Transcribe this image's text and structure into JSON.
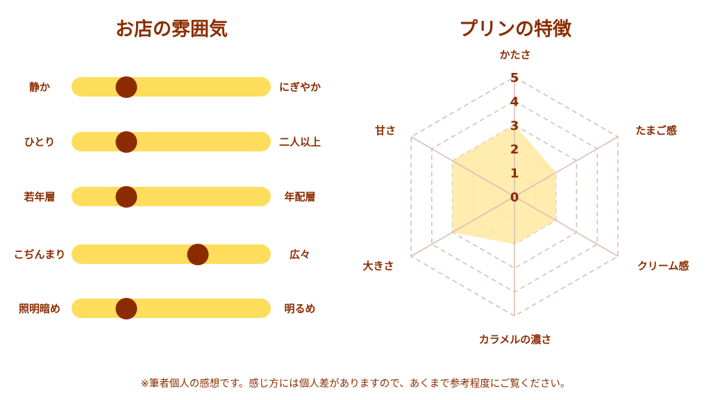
{
  "atmosphere": {
    "title": "お店の雰囲気",
    "sliders": [
      {
        "left": "静か",
        "right": "にぎやか",
        "value": 0.25
      },
      {
        "left": "ひとり",
        "right": "二人以上",
        "value": 0.25
      },
      {
        "left": "若年層",
        "right": "年配層",
        "value": 0.25
      },
      {
        "left": "こぢんまり",
        "right": "広々",
        "value": 0.65
      },
      {
        "left": "照明暗め",
        "right": "明るめ",
        "value": 0.25
      }
    ],
    "colors": {
      "track": "#FFDD5C",
      "knob": "#8B2C00"
    }
  },
  "chart_data": {
    "type": "radar",
    "title": "プリンの特徴",
    "axes": [
      "かたさ",
      "たまご感",
      "クリーム感",
      "カラメルの濃さ",
      "大きさ",
      "甘さ"
    ],
    "values": [
      3,
      2,
      2,
      2,
      3,
      3
    ],
    "range": [
      0,
      5
    ],
    "ticks": [
      "0",
      "1",
      "2",
      "3",
      "4",
      "5"
    ],
    "grid": true,
    "colors": {
      "fill": "#FFE9A0",
      "grid": "#D9BFB5",
      "text": "#8B2C00"
    }
  },
  "footer": "※筆者個人の感想です。感じ方には個人差がありますので、あくまで参考程度にご覧ください。"
}
